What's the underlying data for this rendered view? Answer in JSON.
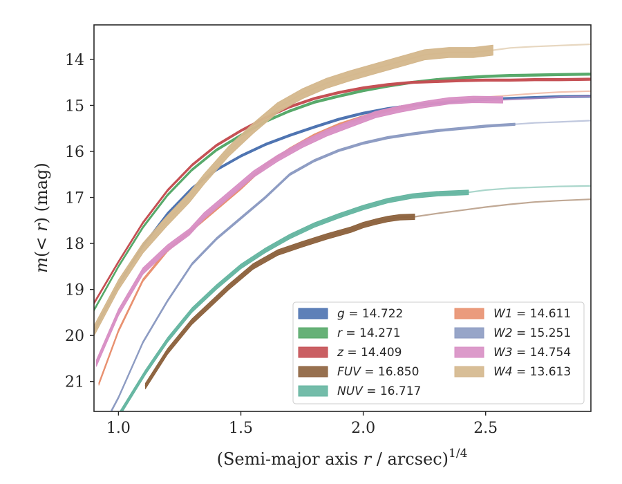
{
  "chart_data": {
    "type": "line",
    "xlabel": "(Semi-major axis r / arcsec)^{1/4}",
    "ylabel": "m(< r) (mag)",
    "xlim": [
      0.9,
      2.93
    ],
    "ylim": [
      21.65,
      13.25
    ],
    "y_inverted": true,
    "xticks": [
      "1.0",
      "1.5",
      "2.0",
      "2.5"
    ],
    "xtick_values": [
      1.0,
      1.5,
      2.0,
      2.5
    ],
    "yticks": [
      "14",
      "15",
      "16",
      "17",
      "18",
      "19",
      "20",
      "21"
    ],
    "ytick_values": [
      14,
      15,
      16,
      17,
      18,
      19,
      20,
      21
    ],
    "grid": false,
    "legend_position": "lower-right",
    "series": [
      {
        "name": "g = 14.722",
        "color": "#4c72b0",
        "measured_until": 2.93,
        "band_width": 0.05,
        "x": [
          0.9,
          1.0,
          1.1,
          1.2,
          1.3,
          1.4,
          1.5,
          1.6,
          1.7,
          1.8,
          1.9,
          2.0,
          2.1,
          2.2,
          2.3,
          2.4,
          2.5,
          2.6,
          2.7,
          2.8,
          2.93
        ],
        "y": [
          19.9,
          18.9,
          18.05,
          17.35,
          16.8,
          16.4,
          16.1,
          15.85,
          15.65,
          15.47,
          15.3,
          15.17,
          15.07,
          15.0,
          14.95,
          14.9,
          14.87,
          14.85,
          14.83,
          14.81,
          14.8
        ]
      },
      {
        "name": "r = 14.271",
        "color": "#55a868",
        "measured_until": 2.93,
        "band_width": 0.05,
        "x": [
          0.9,
          1.0,
          1.1,
          1.2,
          1.3,
          1.4,
          1.5,
          1.6,
          1.7,
          1.8,
          1.9,
          2.0,
          2.1,
          2.2,
          2.3,
          2.4,
          2.5,
          2.6,
          2.7,
          2.8,
          2.93
        ],
        "y": [
          19.45,
          18.5,
          17.65,
          16.95,
          16.4,
          15.97,
          15.65,
          15.35,
          15.12,
          14.93,
          14.8,
          14.68,
          14.58,
          14.5,
          14.44,
          14.4,
          14.37,
          14.35,
          14.34,
          14.33,
          14.32
        ]
      },
      {
        "name": "z = 14.409",
        "color": "#c44e52",
        "measured_until": 2.93,
        "band_width": 0.05,
        "x": [
          0.9,
          1.0,
          1.1,
          1.2,
          1.3,
          1.4,
          1.5,
          1.6,
          1.7,
          1.8,
          1.9,
          2.0,
          2.1,
          2.2,
          2.3,
          2.4,
          2.5,
          2.6,
          2.7,
          2.8,
          2.93
        ],
        "y": [
          19.3,
          18.4,
          17.55,
          16.85,
          16.3,
          15.87,
          15.55,
          15.27,
          15.03,
          14.85,
          14.72,
          14.62,
          14.55,
          14.5,
          14.48,
          14.46,
          14.45,
          14.45,
          14.44,
          14.44,
          14.43
        ]
      },
      {
        "name": "FUV = 16.850",
        "color": "#8c613c",
        "measured_until": 2.21,
        "band_width": 0.12,
        "x": [
          1.11,
          1.2,
          1.3,
          1.4,
          1.45,
          1.55,
          1.65,
          1.75,
          1.85,
          1.95,
          2.0,
          2.05,
          2.1,
          2.15,
          2.21,
          2.3,
          2.4,
          2.5,
          2.6,
          2.7,
          2.8,
          2.93
        ],
        "y": [
          21.1,
          20.35,
          19.7,
          19.2,
          18.95,
          18.5,
          18.2,
          18.02,
          17.85,
          17.7,
          17.6,
          17.53,
          17.47,
          17.43,
          17.42,
          17.35,
          17.28,
          17.21,
          17.15,
          17.1,
          17.07,
          17.04
        ]
      },
      {
        "name": "NUV = 16.717",
        "color": "#64b5a0",
        "measured_until": 2.43,
        "band_width": 0.1,
        "x": [
          0.95,
          1.0,
          1.11,
          1.2,
          1.3,
          1.4,
          1.5,
          1.6,
          1.7,
          1.8,
          1.9,
          2.0,
          2.1,
          2.2,
          2.3,
          2.43,
          2.5,
          2.6,
          2.7,
          2.8,
          2.93
        ],
        "y": [
          22.2,
          21.75,
          20.8,
          20.1,
          19.45,
          18.95,
          18.5,
          18.15,
          17.85,
          17.6,
          17.4,
          17.22,
          17.07,
          16.97,
          16.92,
          16.89,
          16.84,
          16.8,
          16.78,
          16.76,
          16.75
        ]
      },
      {
        "name": "W1 = 14.611",
        "color": "#e8906f",
        "measured_until": 2.2,
        "band_width": 0.06,
        "x": [
          0.92,
          1.0,
          1.1,
          1.2,
          1.3,
          1.4,
          1.5,
          1.6,
          1.7,
          1.8,
          1.9,
          2.0,
          2.1,
          2.2,
          2.3,
          2.4,
          2.5,
          2.6,
          2.7,
          2.8,
          2.93
        ],
        "y": [
          21.05,
          19.9,
          18.8,
          18.15,
          17.7,
          17.25,
          16.8,
          16.3,
          15.95,
          15.65,
          15.42,
          15.25,
          15.1,
          15.0,
          14.93,
          14.87,
          14.82,
          14.78,
          14.74,
          14.71,
          14.69
        ]
      },
      {
        "name": "W2 = 15.251",
        "color": "#8c9bc2",
        "measured_until": 2.62,
        "band_width": 0.05,
        "x": [
          0.97,
          1.0,
          1.1,
          1.2,
          1.3,
          1.4,
          1.5,
          1.6,
          1.7,
          1.8,
          1.9,
          2.0,
          2.1,
          2.2,
          2.3,
          2.4,
          2.5,
          2.62,
          2.7,
          2.8,
          2.93
        ],
        "y": [
          21.65,
          21.35,
          20.15,
          19.25,
          18.45,
          17.9,
          17.45,
          17.0,
          16.5,
          16.2,
          15.98,
          15.82,
          15.7,
          15.62,
          15.55,
          15.5,
          15.45,
          15.41,
          15.38,
          15.36,
          15.33
        ]
      },
      {
        "name": "W3 = 14.754",
        "color": "#d88fc4",
        "measured_until": 2.57,
        "band_width": 0.14,
        "x": [
          0.91,
          1.0,
          1.1,
          1.2,
          1.29,
          1.35,
          1.45,
          1.55,
          1.65,
          1.75,
          1.85,
          1.95,
          2.05,
          2.15,
          2.25,
          2.35,
          2.45,
          2.57,
          2.7,
          2.8,
          2.93
        ],
        "y": [
          20.6,
          19.5,
          18.6,
          18.1,
          17.75,
          17.4,
          16.95,
          16.5,
          16.15,
          15.85,
          15.6,
          15.4,
          15.2,
          15.08,
          14.98,
          14.9,
          14.87,
          14.88,
          14.85,
          14.82,
          14.8
        ]
      },
      {
        "name": "W4 = 13.613",
        "color": "#d4b78c",
        "measured_until": 2.53,
        "band_width": 0.22,
        "x": [
          0.9,
          1.0,
          1.1,
          1.2,
          1.29,
          1.35,
          1.45,
          1.55,
          1.65,
          1.75,
          1.85,
          1.95,
          2.05,
          2.15,
          2.25,
          2.35,
          2.45,
          2.53,
          2.6,
          2.7,
          2.8,
          2.93
        ],
        "y": [
          19.9,
          18.9,
          18.1,
          17.5,
          17.0,
          16.6,
          16.0,
          15.5,
          15.05,
          14.75,
          14.52,
          14.35,
          14.2,
          14.05,
          13.9,
          13.85,
          13.85,
          13.8,
          13.75,
          13.72,
          13.7,
          13.67
        ]
      }
    ],
    "legend_columns": [
      [
        "g = 14.722",
        "r = 14.271",
        "z = 14.409",
        "FUV = 16.850",
        "NUV = 16.717"
      ],
      [
        "W1 = 14.611",
        "W2 = 15.251",
        "W3 = 14.754",
        "W4 = 13.613"
      ]
    ]
  }
}
